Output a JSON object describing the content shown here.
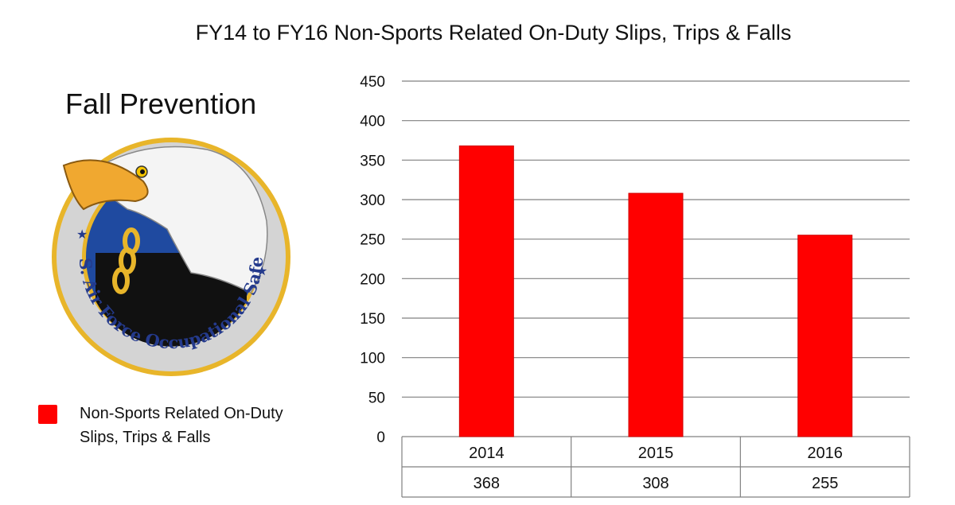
{
  "header": {
    "title": "FY14 to FY16 Non-Sports Related On-Duty Slips, Trips & Falls",
    "subtitle": "Fall Prevention"
  },
  "logo": {
    "text": "U.S. Air Force Occupational Safety",
    "colors": {
      "ring": "#d4d4d4",
      "blue": "#1f4aa0",
      "gold": "#e8b52a",
      "navy": "#243a8c"
    }
  },
  "legend": {
    "label": "Non-Sports Related On-Duty Slips, Trips & Falls",
    "color": "#ff0000"
  },
  "chart_data": {
    "type": "bar",
    "categories": [
      "2014",
      "2015",
      "2016"
    ],
    "series": [
      {
        "name": "Non-Sports Related On-Duty Slips, Trips & Falls",
        "values": [
          368,
          308,
          255
        ],
        "color": "#ff0000"
      }
    ],
    "ylim": [
      0,
      450
    ],
    "yticks": [
      0,
      50,
      100,
      150,
      200,
      250,
      300,
      350,
      400,
      450
    ],
    "grid": true,
    "data_table": true,
    "legend_position": "left"
  }
}
